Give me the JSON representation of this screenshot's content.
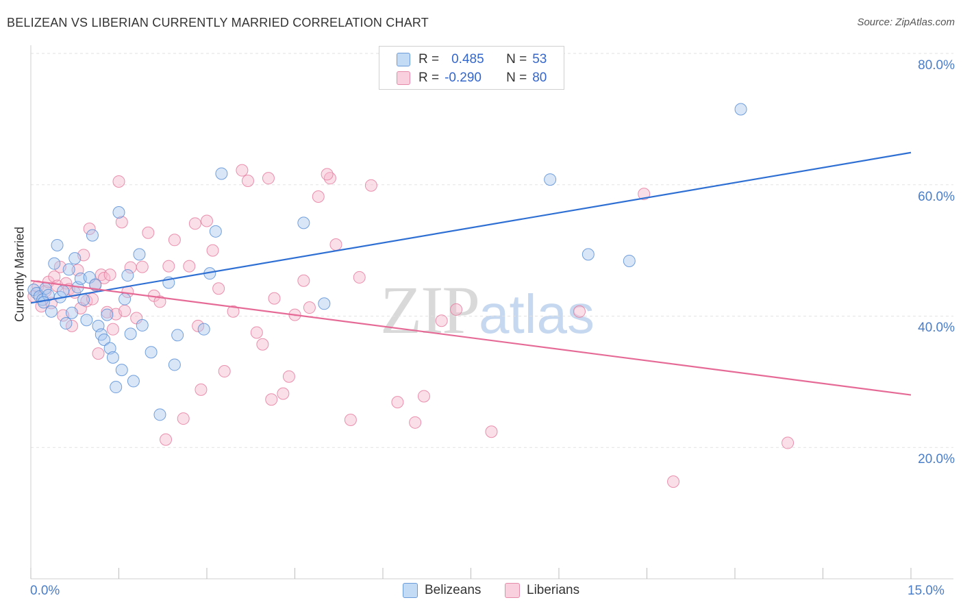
{
  "title": "BELIZEAN VS LIBERIAN CURRENTLY MARRIED CORRELATION CHART",
  "source": "Source: ZipAtlas.com",
  "watermark": {
    "zip": "ZIP",
    "atlas": "atlas"
  },
  "legend": {
    "rows": [
      {
        "r_label": "R =",
        "r_value": "0.485",
        "n_label": "N =",
        "n_value": "53"
      },
      {
        "r_label": "R =",
        "r_value": "-0.290",
        "n_label": "N =",
        "n_value": "80"
      }
    ]
  },
  "bottom_legend": {
    "belizeans": "Belizeans",
    "liberians": "Liberians"
  },
  "colors": {
    "blue_fill": "#a8c8f0",
    "blue_stroke": "#5b8fd6",
    "blue_line": "#2e6fd4",
    "pink_fill": "#f6b8cc",
    "pink_stroke": "#e57ea0",
    "pink_line": "#e66a96"
  },
  "chart_data": {
    "type": "scatter",
    "title": "BELIZEAN VS LIBERIAN CURRENTLY MARRIED CORRELATION CHART",
    "xlabel": "",
    "ylabel": "Currently Married",
    "xlim": [
      0,
      15
    ],
    "ylim": [
      0,
      80
    ],
    "x_tick_labels": [
      "0.0%",
      "15.0%"
    ],
    "y_ticks": [
      20,
      40,
      60,
      80
    ],
    "y_tick_labels": [
      "20.0%",
      "40.0%",
      "60.0%",
      "80.0%"
    ],
    "grid": true,
    "legend_position": "top-center",
    "series": [
      {
        "name": "Belizeans",
        "r": 0.485,
        "n": 53,
        "trend": {
          "x": [
            0,
            15
          ],
          "y": [
            42.0,
            64.9
          ]
        },
        "points": [
          [
            0.05,
            44.0
          ],
          [
            0.1,
            43.5
          ],
          [
            0.15,
            43.0
          ],
          [
            0.2,
            42.5
          ],
          [
            0.25,
            44.2
          ],
          [
            0.3,
            43.2
          ],
          [
            0.35,
            40.7
          ],
          [
            0.4,
            48.0
          ],
          [
            0.45,
            50.8
          ],
          [
            0.5,
            42.9
          ],
          [
            0.55,
            43.8
          ],
          [
            0.6,
            38.9
          ],
          [
            0.65,
            47.1
          ],
          [
            0.7,
            40.5
          ],
          [
            0.75,
            48.8
          ],
          [
            0.8,
            44.4
          ],
          [
            0.85,
            45.7
          ],
          [
            0.9,
            42.5
          ],
          [
            0.95,
            39.4
          ],
          [
            1.0,
            45.9
          ],
          [
            1.05,
            52.3
          ],
          [
            1.1,
            44.8
          ],
          [
            1.15,
            38.5
          ],
          [
            1.2,
            37.2
          ],
          [
            1.25,
            36.4
          ],
          [
            1.3,
            40.2
          ],
          [
            1.35,
            35.1
          ],
          [
            1.4,
            33.7
          ],
          [
            1.45,
            29.2
          ],
          [
            1.5,
            55.8
          ],
          [
            1.55,
            31.8
          ],
          [
            1.6,
            42.6
          ],
          [
            1.65,
            46.2
          ],
          [
            1.7,
            37.3
          ],
          [
            1.75,
            30.1
          ],
          [
            1.85,
            49.4
          ],
          [
            1.9,
            38.6
          ],
          [
            2.05,
            34.5
          ],
          [
            2.2,
            25.0
          ],
          [
            2.35,
            45.1
          ],
          [
            2.45,
            32.6
          ],
          [
            2.5,
            37.1
          ],
          [
            2.95,
            38.0
          ],
          [
            3.05,
            46.5
          ],
          [
            3.15,
            52.9
          ],
          [
            3.25,
            61.7
          ],
          [
            4.65,
            54.2
          ],
          [
            5.0,
            41.9
          ],
          [
            8.85,
            60.8
          ],
          [
            9.5,
            49.4
          ],
          [
            10.2,
            48.4
          ],
          [
            12.1,
            71.5
          ],
          [
            0.22,
            42.1
          ]
        ]
      },
      {
        "name": "Liberians",
        "r": -0.29,
        "n": 80,
        "trend": {
          "x": [
            0,
            15
          ],
          "y": [
            45.4,
            28.0
          ]
        },
        "points": [
          [
            0.05,
            43.0
          ],
          [
            0.12,
            44.5
          ],
          [
            0.18,
            41.5
          ],
          [
            0.25,
            43.8
          ],
          [
            0.3,
            45.2
          ],
          [
            0.35,
            42.0
          ],
          [
            0.4,
            46.0
          ],
          [
            0.45,
            44.6
          ],
          [
            0.5,
            47.5
          ],
          [
            0.55,
            40.1
          ],
          [
            0.6,
            45.0
          ],
          [
            0.65,
            44.1
          ],
          [
            0.7,
            38.5
          ],
          [
            0.75,
            43.6
          ],
          [
            0.8,
            47.0
          ],
          [
            0.85,
            41.2
          ],
          [
            0.9,
            49.3
          ],
          [
            0.95,
            42.3
          ],
          [
            1.0,
            53.3
          ],
          [
            1.05,
            42.6
          ],
          [
            1.1,
            44.7
          ],
          [
            1.15,
            34.3
          ],
          [
            1.2,
            46.3
          ],
          [
            1.25,
            45.8
          ],
          [
            1.3,
            40.6
          ],
          [
            1.35,
            46.3
          ],
          [
            1.4,
            38.0
          ],
          [
            1.45,
            40.3
          ],
          [
            1.5,
            60.5
          ],
          [
            1.55,
            54.3
          ],
          [
            1.6,
            40.8
          ],
          [
            1.7,
            47.4
          ],
          [
            1.8,
            39.7
          ],
          [
            1.9,
            47.5
          ],
          [
            2.0,
            52.7
          ],
          [
            2.1,
            43.1
          ],
          [
            2.2,
            42.2
          ],
          [
            2.3,
            21.2
          ],
          [
            2.35,
            47.6
          ],
          [
            2.45,
            51.6
          ],
          [
            2.6,
            24.4
          ],
          [
            2.7,
            47.6
          ],
          [
            2.8,
            54.1
          ],
          [
            2.9,
            28.8
          ],
          [
            3.0,
            54.5
          ],
          [
            3.1,
            50.0
          ],
          [
            3.2,
            44.2
          ],
          [
            3.3,
            31.6
          ],
          [
            3.45,
            40.7
          ],
          [
            3.6,
            62.2
          ],
          [
            3.7,
            60.6
          ],
          [
            3.85,
            37.5
          ],
          [
            3.95,
            35.7
          ],
          [
            4.05,
            61.0
          ],
          [
            4.15,
            42.7
          ],
          [
            4.3,
            28.2
          ],
          [
            4.4,
            30.8
          ],
          [
            4.5,
            40.2
          ],
          [
            4.65,
            45.4
          ],
          [
            4.75,
            41.3
          ],
          [
            4.9,
            58.2
          ],
          [
            5.1,
            61.0
          ],
          [
            5.2,
            50.9
          ],
          [
            5.45,
            24.2
          ],
          [
            5.6,
            45.9
          ],
          [
            5.8,
            59.9
          ],
          [
            6.25,
            26.9
          ],
          [
            6.55,
            23.8
          ],
          [
            6.7,
            27.8
          ],
          [
            7.0,
            39.3
          ],
          [
            7.25,
            41.0
          ],
          [
            7.85,
            22.4
          ],
          [
            9.35,
            40.7
          ],
          [
            10.45,
            58.6
          ],
          [
            10.95,
            14.8
          ],
          [
            12.9,
            20.7
          ],
          [
            2.85,
            38.5
          ],
          [
            1.65,
            43.7
          ],
          [
            4.1,
            27.3
          ],
          [
            5.05,
            61.6
          ]
        ]
      }
    ]
  }
}
